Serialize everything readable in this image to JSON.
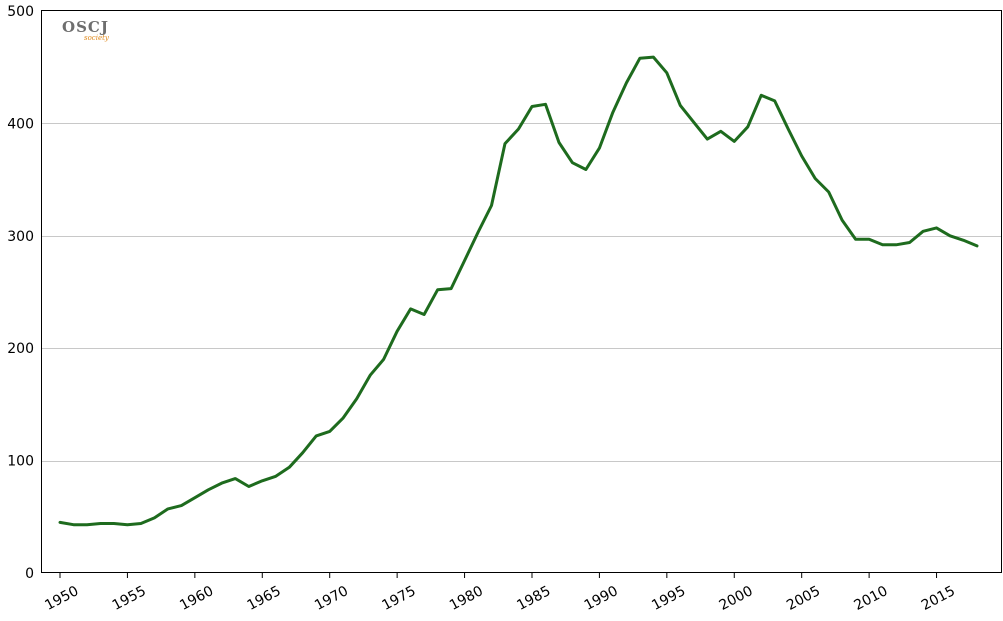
{
  "chart_data": {
    "type": "line",
    "title": "",
    "xlabel": "",
    "ylabel": "",
    "xlim": [
      1950,
      2018
    ],
    "ylim": [
      0,
      500
    ],
    "yticks": [
      0,
      100,
      200,
      300,
      400,
      500
    ],
    "xticks": [
      1950,
      1955,
      1960,
      1965,
      1970,
      1975,
      1980,
      1985,
      1990,
      1995,
      2000,
      2005,
      2010,
      2015
    ],
    "grid": "horizontal",
    "legend": "none",
    "logo": {
      "text": "OSCJ",
      "tagline": "society"
    },
    "colors": {
      "line": "#1e6b1e",
      "grid": "#c8c8c8",
      "axis": "#000000",
      "border": "#000000"
    },
    "series": [
      {
        "x": [
          1950,
          1951,
          1952,
          1953,
          1954,
          1955,
          1956,
          1957,
          1958,
          1959,
          1960,
          1961,
          1962,
          1963,
          1964,
          1965,
          1966,
          1967,
          1968,
          1969,
          1970,
          1971,
          1972,
          1973,
          1974,
          1975,
          1976,
          1977,
          1978,
          1979,
          1980,
          1981,
          1982,
          1983,
          1984,
          1985,
          1986,
          1987,
          1988,
          1989,
          1990,
          1991,
          1992,
          1993,
          1994,
          1995,
          1996,
          1997,
          1998,
          1999,
          2000,
          2001,
          2002,
          2003,
          2004,
          2005,
          2006,
          2007,
          2008,
          2009,
          2010,
          2011,
          2012,
          2013,
          2014,
          2015,
          2016,
          2017,
          2018
        ],
        "values": [
          45,
          43,
          43,
          44,
          44,
          43,
          44,
          49,
          57,
          60,
          67,
          74,
          80,
          84,
          77,
          82,
          86,
          94,
          107,
          122,
          126,
          138,
          155,
          176,
          190,
          215,
          235,
          230,
          252,
          253,
          278,
          303,
          327,
          382,
          395,
          415,
          417,
          383,
          365,
          359,
          378,
          410,
          436,
          458,
          459,
          445,
          416,
          401,
          386,
          393,
          384,
          397,
          425,
          420,
          395,
          371,
          351,
          339,
          314,
          297,
          297,
          292,
          292,
          294,
          304,
          307,
          300,
          296,
          291
        ]
      }
    ]
  }
}
